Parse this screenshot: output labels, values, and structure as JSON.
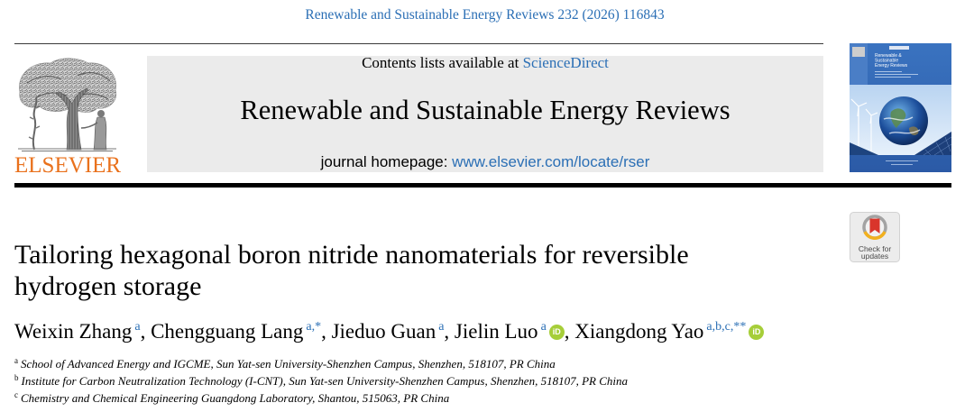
{
  "header": {
    "citation": "Renewable and Sustainable Energy Reviews 232 (2026) 116843"
  },
  "publisher": {
    "wordmark": "ELSEVIER",
    "logo_icon": "elsevier-tree-logo"
  },
  "masthead": {
    "contents_prefix": "Contents lists available at ",
    "contents_link": "ScienceDirect",
    "journal_title": "Renewable and Sustainable Energy Reviews",
    "homepage_prefix": "journal homepage: ",
    "homepage_link": "www.elsevier.com/locate/rser"
  },
  "cover": {
    "title_lines": [
      "Renewable &",
      "Sustainable",
      "Energy Reviews"
    ]
  },
  "check_updates": {
    "line1": "Check for",
    "line2": "updates",
    "icon": "crossmark-icon"
  },
  "article": {
    "title": "Tailoring hexagonal boron nitride nanomaterials for reversible hydrogen storage",
    "author_separator": ", ",
    "orcid_label": "iD",
    "authors": [
      {
        "name": "Weixin Zhang",
        "marks": "a",
        "orcid": false
      },
      {
        "name": "Chengguang Lang",
        "marks": "a,*",
        "orcid": false
      },
      {
        "name": "Jieduo Guan",
        "marks": "a",
        "orcid": false
      },
      {
        "name": "Jielin Luo",
        "marks": "a",
        "orcid": true
      },
      {
        "name": "Xiangdong Yao",
        "marks": "a,b,c,**",
        "orcid": true
      }
    ],
    "affiliations": [
      {
        "mark": "a",
        "text": "School of Advanced Energy and IGCME, Sun Yat-sen University-Shenzhen Campus, Shenzhen, 518107, PR China"
      },
      {
        "mark": "b",
        "text": "Institute for Carbon Neutralization Technology (I-CNT), Sun Yat-sen University-Shenzhen Campus, Shenzhen, 518107, PR China"
      },
      {
        "mark": "c",
        "text": "Chemistry and Chemical Engineering Guangdong Laboratory, Shantou, 515063, PR China"
      }
    ]
  },
  "colors": {
    "link_blue": "#2b6fb5",
    "elsevier_orange": "#e9711c",
    "orcid_green": "#a6ce39",
    "masthead_gray": "#ebebeb"
  }
}
